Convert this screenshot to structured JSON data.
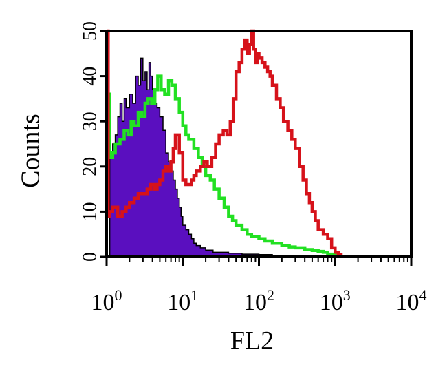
{
  "chart_data": {
    "type": "area",
    "title": "",
    "xlabel": "FL2",
    "ylabel": "Counts",
    "x_scale": "log",
    "xlim": [
      1,
      10000
    ],
    "ylim": [
      0,
      50
    ],
    "x_ticks": [
      {
        "value": 1,
        "base": "10",
        "exp": "0"
      },
      {
        "value": 10,
        "base": "10",
        "exp": "1"
      },
      {
        "value": 100,
        "base": "10",
        "exp": "2"
      },
      {
        "value": 1000,
        "base": "10",
        "exp": "3"
      },
      {
        "value": 10000,
        "base": "10",
        "exp": "4"
      }
    ],
    "y_ticks": [
      {
        "value": 0,
        "label": "0"
      },
      {
        "value": 10,
        "label": "10"
      },
      {
        "value": 20,
        "label": "20"
      },
      {
        "value": 30,
        "label": "30"
      },
      {
        "value": 40,
        "label": "40"
      },
      {
        "value": 50,
        "label": "50"
      }
    ],
    "grid": false,
    "series": [
      {
        "color": "#5a0fbf",
        "style": "filled",
        "x": [
          1.05,
          1.1,
          1.2,
          1.3,
          1.4,
          1.5,
          1.6,
          1.7,
          1.8,
          2.0,
          2.2,
          2.4,
          2.6,
          2.8,
          3.0,
          3.2,
          3.4,
          3.6,
          3.8,
          4.0,
          4.3,
          4.6,
          5.0,
          5.5,
          6.0,
          6.5,
          7.0,
          7.5,
          8.0,
          8.5,
          9.0,
          9.5,
          10,
          11,
          12,
          13,
          14,
          15,
          17,
          20,
          25,
          30,
          40,
          60,
          100,
          150,
          300,
          1000
        ],
        "y": [
          0,
          23,
          25,
          27,
          31,
          34,
          30,
          35,
          33,
          36,
          34,
          40,
          38,
          44,
          39,
          41,
          37,
          43,
          40,
          37,
          34,
          33,
          31,
          28,
          23,
          21,
          19,
          17,
          15,
          13,
          11,
          9,
          7,
          6,
          5,
          4,
          3,
          2.5,
          2,
          1.5,
          1,
          1,
          0.8,
          0.6,
          0.5,
          0.3,
          0.2,
          0
        ]
      },
      {
        "color": "#22e022",
        "style": "line",
        "x": [
          1.0,
          1.1,
          1.2,
          1.3,
          1.5,
          1.7,
          1.9,
          2.1,
          2.3,
          2.6,
          2.9,
          3.2,
          3.5,
          3.9,
          4.3,
          4.7,
          5.2,
          5.8,
          6.5,
          7.2,
          8.0,
          9.0,
          10,
          11,
          12,
          14,
          16,
          18,
          20,
          23,
          26,
          30,
          35,
          40,
          45,
          50,
          60,
          70,
          80,
          100,
          120,
          150,
          200,
          250,
          300,
          400,
          500,
          600,
          700,
          800,
          1000
        ],
        "y": [
          36,
          22,
          23,
          25,
          26,
          28,
          27,
          30,
          29,
          32,
          31,
          34,
          35,
          34,
          37,
          40,
          37,
          36,
          39,
          38,
          35,
          32,
          29,
          27,
          26,
          24,
          22,
          20,
          18,
          17,
          15,
          13,
          11,
          9,
          8,
          7,
          6,
          5,
          4.5,
          4,
          3.5,
          3,
          2.5,
          2.2,
          2,
          1.6,
          1.4,
          1.2,
          1.0,
          0.6,
          0.2
        ]
      },
      {
        "color": "#d6121a",
        "style": "line",
        "x": [
          1.0,
          1.05,
          1.1,
          1.2,
          1.4,
          1.6,
          1.8,
          2.0,
          2.3,
          2.6,
          3.0,
          3.4,
          3.8,
          4.2,
          4.6,
          5.0,
          5.5,
          6.0,
          6.5,
          7.0,
          7.5,
          8.0,
          9.0,
          10,
          11,
          12,
          13,
          14,
          15,
          17,
          19,
          21,
          24,
          27,
          30,
          34,
          38,
          42,
          46,
          50,
          55,
          60,
          65,
          70,
          75,
          80,
          85,
          90,
          95,
          100,
          110,
          120,
          130,
          140,
          150,
          170,
          190,
          210,
          240,
          270,
          300,
          340,
          380,
          420,
          460,
          500,
          550,
          600,
          700,
          800,
          900,
          1000,
          1100,
          1200
        ],
        "y": [
          50,
          9,
          10,
          11,
          9,
          10,
          11,
          12,
          13,
          14,
          14,
          15,
          16,
          15,
          16,
          17,
          19,
          20,
          19,
          21,
          24,
          27,
          23,
          17,
          16,
          16,
          17,
          18,
          19,
          20,
          21,
          20,
          22,
          25,
          27,
          28,
          27,
          30,
          35,
          41,
          43,
          46,
          48,
          45,
          47,
          50,
          46,
          43,
          45,
          44,
          43,
          42,
          41,
          40,
          38,
          35,
          33,
          30,
          28,
          26,
          24,
          20,
          17,
          14,
          12,
          10,
          8,
          6,
          5,
          4,
          2,
          1,
          0.5,
          0
        ]
      }
    ]
  }
}
